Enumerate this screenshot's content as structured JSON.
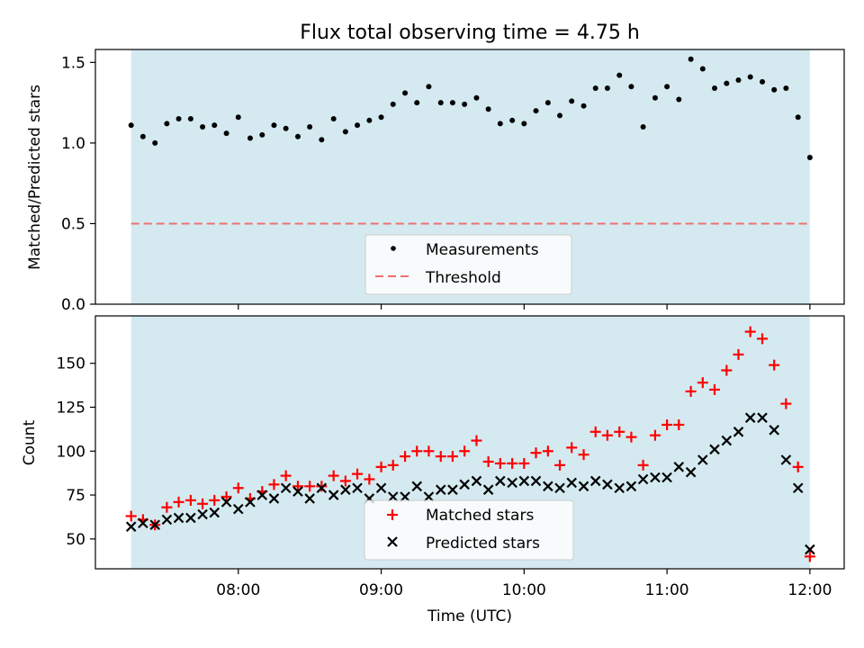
{
  "title": "Flux total observing time = 4.75 h",
  "colors": {
    "shade": "#d4eaf0",
    "measurement": "#000000",
    "threshold": "#f07070",
    "matched": "#ff0000",
    "predicted": "#000000"
  },
  "chart_data": [
    {
      "type": "scatter",
      "ylabel": "Matched/Predicted stars",
      "ylim": [
        0.0,
        1.58
      ],
      "yticks": [
        0.0,
        0.5,
        1.0,
        1.5
      ],
      "ytick_labels": [
        "0.0",
        "0.5",
        "1.0",
        "1.5"
      ],
      "xlim": [
        7.0,
        12.24
      ],
      "observing_window": [
        7.25,
        12.0
      ],
      "threshold": 0.5,
      "legend_placement": "lower center",
      "legend": [
        "Measurements",
        "Threshold"
      ],
      "series": [
        {
          "name": "Measurements",
          "x": [
            7.25,
            7.333,
            7.417,
            7.5,
            7.583,
            7.667,
            7.75,
            7.833,
            7.917,
            8.0,
            8.083,
            8.167,
            8.25,
            8.333,
            8.417,
            8.5,
            8.583,
            8.667,
            8.75,
            8.833,
            8.917,
            9.0,
            9.083,
            9.167,
            9.25,
            9.333,
            9.417,
            9.5,
            9.583,
            9.667,
            9.75,
            9.833,
            9.917,
            10.0,
            10.083,
            10.167,
            10.25,
            10.333,
            10.417,
            10.5,
            10.583,
            10.667,
            10.75,
            10.833,
            10.917,
            11.0,
            11.083,
            11.167,
            11.25,
            11.333,
            11.417,
            11.5,
            11.583,
            11.667,
            11.75,
            11.833,
            11.917,
            12.0
          ],
          "y": [
            1.11,
            1.04,
            1.0,
            1.12,
            1.15,
            1.15,
            1.1,
            1.11,
            1.06,
            1.16,
            1.03,
            1.05,
            1.11,
            1.09,
            1.04,
            1.1,
            1.02,
            1.15,
            1.07,
            1.11,
            1.14,
            1.16,
            1.24,
            1.31,
            1.25,
            1.35,
            1.25,
            1.25,
            1.24,
            1.28,
            1.21,
            1.12,
            1.14,
            1.12,
            1.2,
            1.25,
            1.17,
            1.26,
            1.23,
            1.34,
            1.34,
            1.42,
            1.35,
            1.1,
            1.28,
            1.35,
            1.27,
            1.52,
            1.46,
            1.34,
            1.37,
            1.39,
            1.41,
            1.38,
            1.33,
            1.34,
            1.16,
            0.91
          ]
        }
      ]
    },
    {
      "type": "scatter",
      "xlabel": "Time (UTC)",
      "ylabel": "Count",
      "ylim": [
        33,
        177
      ],
      "yticks": [
        50,
        75,
        100,
        125,
        150
      ],
      "xlim": [
        7.0,
        12.24
      ],
      "xticks": [
        8,
        9,
        10,
        11,
        12
      ],
      "xtick_labels": [
        "08:00",
        "09:00",
        "10:00",
        "11:00",
        "12:00"
      ],
      "observing_window": [
        7.25,
        12.0
      ],
      "legend_placement": "lower center",
      "legend": [
        "Matched stars",
        "Predicted stars"
      ],
      "series": [
        {
          "name": "Matched stars",
          "marker": "+",
          "x": [
            7.25,
            7.333,
            7.417,
            7.5,
            7.583,
            7.667,
            7.75,
            7.833,
            7.917,
            8.0,
            8.083,
            8.167,
            8.25,
            8.333,
            8.417,
            8.5,
            8.583,
            8.667,
            8.75,
            8.833,
            8.917,
            9.0,
            9.083,
            9.167,
            9.25,
            9.333,
            9.417,
            9.5,
            9.583,
            9.667,
            9.75,
            9.833,
            9.917,
            10.0,
            10.083,
            10.167,
            10.25,
            10.333,
            10.417,
            10.5,
            10.583,
            10.667,
            10.75,
            10.833,
            10.917,
            11.0,
            11.083,
            11.167,
            11.25,
            11.333,
            11.417,
            11.5,
            11.583,
            11.667,
            11.75,
            11.833,
            11.917,
            12.0
          ],
          "y": [
            63,
            61,
            58,
            68,
            71,
            72,
            70,
            72,
            74,
            79,
            73,
            77,
            81,
            86,
            80,
            80,
            80,
            86,
            83,
            87,
            84,
            91,
            92,
            97,
            100,
            100,
            97,
            97,
            100,
            106,
            94,
            93,
            93,
            93,
            99,
            100,
            92,
            102,
            98,
            111,
            109,
            111,
            108,
            92,
            109,
            115,
            115,
            134,
            139,
            135,
            146,
            155,
            168,
            164,
            149,
            127,
            91,
            40
          ]
        },
        {
          "name": "Predicted stars",
          "marker": "x",
          "x": [
            7.25,
            7.333,
            7.417,
            7.5,
            7.583,
            7.667,
            7.75,
            7.833,
            7.917,
            8.0,
            8.083,
            8.167,
            8.25,
            8.333,
            8.417,
            8.5,
            8.583,
            8.667,
            8.75,
            8.833,
            8.917,
            9.0,
            9.083,
            9.167,
            9.25,
            9.333,
            9.417,
            9.5,
            9.583,
            9.667,
            9.75,
            9.833,
            9.917,
            10.0,
            10.083,
            10.167,
            10.25,
            10.333,
            10.417,
            10.5,
            10.583,
            10.667,
            10.75,
            10.833,
            10.917,
            11.0,
            11.083,
            11.167,
            11.25,
            11.333,
            11.417,
            11.5,
            11.583,
            11.667,
            11.75,
            11.833,
            11.917,
            12.0
          ],
          "y": [
            57,
            59,
            58,
            61,
            62,
            62,
            64,
            65,
            71,
            67,
            71,
            75,
            73,
            79,
            77,
            73,
            79,
            75,
            78,
            79,
            73,
            79,
            74,
            74,
            80,
            74,
            78,
            78,
            81,
            83,
            78,
            83,
            82,
            83,
            83,
            80,
            79,
            82,
            80,
            83,
            81,
            79,
            80,
            84,
            85,
            85,
            91,
            88,
            95,
            101,
            106,
            111,
            119,
            119,
            112,
            95,
            79,
            44
          ]
        }
      ]
    }
  ]
}
